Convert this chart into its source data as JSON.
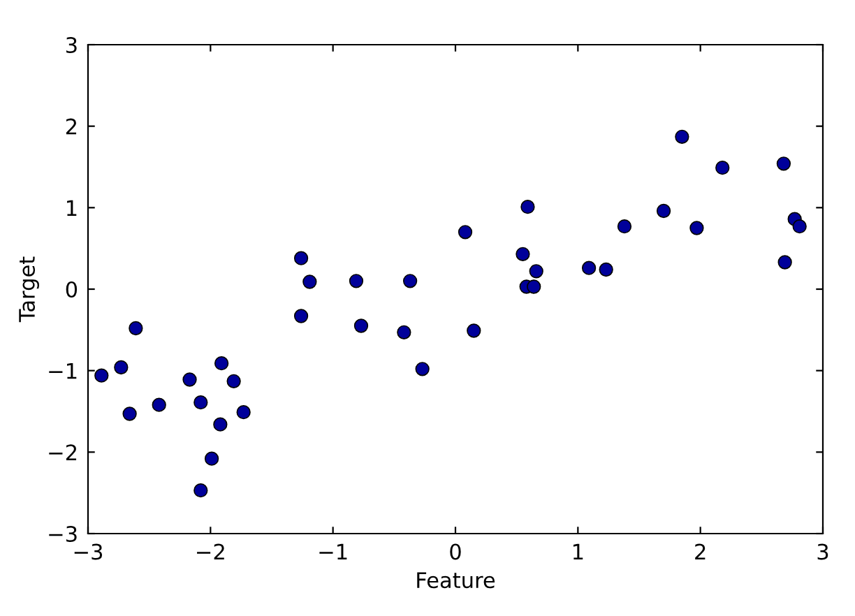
{
  "chart_data": {
    "type": "scatter",
    "xlabel": "Feature",
    "ylabel": "Target",
    "xlim": [
      -3,
      3
    ],
    "ylim": [
      -3,
      3
    ],
    "xticks": [
      {
        "value": -3,
        "label": "−3"
      },
      {
        "value": -2,
        "label": "−2"
      },
      {
        "value": -1,
        "label": "−1"
      },
      0,
      1,
      2,
      3
    ],
    "yticks": [
      {
        "value": -3,
        "label": "−3"
      },
      {
        "value": -2,
        "label": "−2"
      },
      {
        "value": -1,
        "label": "−1"
      },
      0,
      1,
      2,
      3
    ],
    "grid": false,
    "marker": "circle",
    "series": [
      {
        "color": "#00009a",
        "x": [
          -2.89,
          -2.73,
          -2.61,
          -2.66,
          -2.42,
          -2.17,
          -2.08,
          -2.08,
          -1.99,
          -1.91,
          -1.92,
          -1.81,
          -1.73,
          -1.26,
          -1.26,
          -1.19,
          -0.81,
          -0.77,
          -0.42,
          -0.37,
          -0.27,
          0.08,
          0.15,
          0.55,
          0.59,
          0.58,
          0.64,
          0.66,
          1.09,
          1.23,
          1.38,
          1.7,
          1.85,
          1.97,
          2.18,
          2.68,
          2.69,
          2.77,
          2.81
        ],
        "values": [
          -1.06,
          -0.96,
          -0.48,
          -1.53,
          -1.42,
          -1.11,
          -1.39,
          -2.47,
          -2.08,
          -0.91,
          -1.66,
          -1.13,
          -1.51,
          0.38,
          -0.33,
          0.09,
          0.1,
          -0.45,
          -0.53,
          0.1,
          -0.98,
          0.7,
          -0.51,
          0.43,
          1.01,
          0.03,
          0.03,
          0.22,
          0.26,
          0.24,
          0.77,
          0.96,
          1.87,
          0.75,
          1.49,
          1.54,
          0.33,
          0.86,
          0.77
        ]
      }
    ]
  }
}
